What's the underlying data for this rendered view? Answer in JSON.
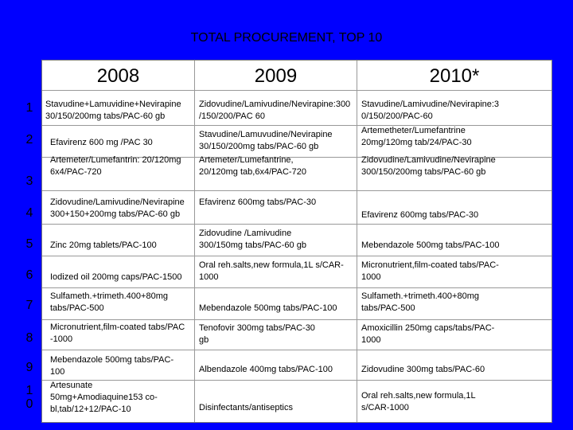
{
  "title": "TOTAL PROCUREMENT, TOP 10",
  "years": [
    "2008",
    "2009",
    "2010*"
  ],
  "rows": [
    {
      "num": "1",
      "c2008": "Stavudine+Lamuvidine+Nevirapine\n30/150/200mg tabs/PAC-60 gb",
      "c2009": "Zidovudine/Lamivudine/Nevirapine:300\n/150/200/PAC 60",
      "c2010": "Stavudine/Lamivudine/Nevirapine:3\n0/150/200/PAC-60"
    },
    {
      "num": "2",
      "c2008": "Efavirenz 600 mg /PAC 30",
      "c2009": "Stavudine/Lamuvudine/Nevirapine\n30/150/200mg tabs/PAC-60 gb",
      "c2010": "Artemetheter/Lumefantrine\n20mg/120mg tab/24/PAC-30"
    },
    {
      "num": "3",
      "c2008": "Artemeter/Lumefantrin: 20/120mg\n6x4/PAC-720",
      "c2009": "Artemeter/Lumefantrine,\n20/120mg tab,6x4/PAC-720",
      "c2010": "Zidovudine/Lamivudine/Nevirapine\n300/150/200mg tabs/PAC-60 gb"
    },
    {
      "num": "4",
      "c2008": "Zidovudine/Lamivudine/Nevirapine\n300+150+200mg tabs/PAC-60 gb",
      "c2009": "Efavirenz 600mg tabs/PAC-30",
      "c2010": "Efavirenz 600mg tabs/PAC-30"
    },
    {
      "num": "5",
      "c2008": "Zinc 20mg tablets/PAC-100",
      "c2009": "Zidovudine /Lamivudine\n300/150mg tabs/PAC-60          gb",
      "c2010": "Mebendazole 500mg tabs/PAC-100"
    },
    {
      "num": "6",
      "c2008": "Iodized oil 200mg caps/PAC-1500",
      "c2009": "Oral reh.salts,new formula,1L s/CAR-\n1000",
      "c2010": "Micronutrient,film-coated tabs/PAC-\n1000"
    },
    {
      "num": "7",
      "c2008": "Sulfameth.+trimeth.400+80mg\ntabs/PAC-500",
      "c2009": "Mebendazole 500mg tabs/PAC-100",
      "c2010": "Sulfameth.+trimeth.400+80mg\ntabs/PAC-500"
    },
    {
      "num": "8",
      "c2008": "Micronutrient,film-coated tabs/PAC\n-1000",
      "c2009": "Tenofovir 300mg tabs/PAC-30\ngb",
      "c2010": "Amoxicillin 250mg caps/tabs/PAC-\n1000"
    },
    {
      "num": "9",
      "c2008": "Mebendazole 500mg tabs/PAC-\n100",
      "c2009": "Albendazole 400mg tabs/PAC-100",
      "c2010": "Zidovudine 300mg tabs/PAC-60"
    },
    {
      "num": "1\n0",
      "c2008": "Artesunate\n50mg+Amodiaquine153 co-\nbl,tab/12+12/PAC-10",
      "c2009": "Disinfectants/antiseptics",
      "c2010": "Oral reh.salts,new formula,1L\ns/CAR-1000"
    }
  ]
}
